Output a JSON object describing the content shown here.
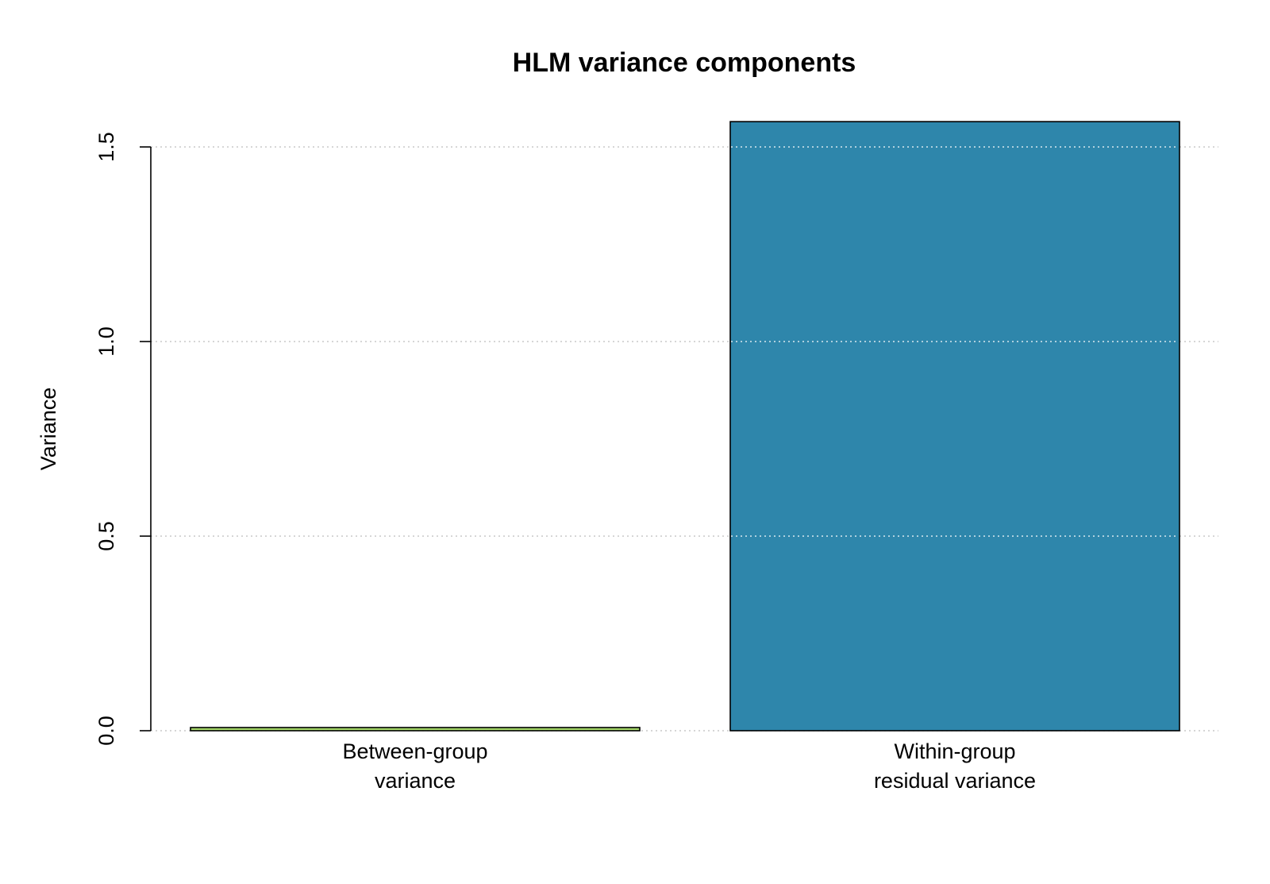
{
  "chart_data": {
    "type": "bar",
    "title": "HLM variance components",
    "xlabel": "",
    "ylabel": "Variance",
    "categories": [
      [
        "Between-group",
        "variance"
      ],
      [
        "Within-group",
        "residual variance"
      ]
    ],
    "values": [
      0.008,
      1.565
    ],
    "bar_colors": [
      "#a6d96a",
      "#2e86ab"
    ],
    "yticks": [
      "0.0",
      "0.5",
      "1.0",
      "1.5"
    ],
    "ytick_values": [
      0,
      0.5,
      1.0,
      1.5
    ],
    "ylim": [
      0,
      1.565
    ],
    "grid": "horizontal dotted"
  }
}
